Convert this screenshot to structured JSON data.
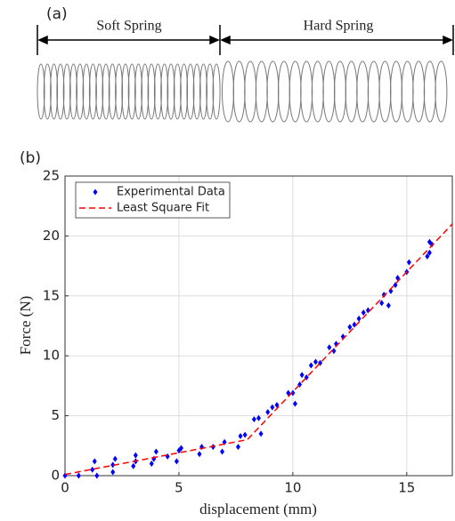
{
  "panel_a": {
    "label": "(a)",
    "soft": "Soft Spring",
    "hard": "Hard Spring"
  },
  "panel_b_label": "(b)",
  "chart_data": {
    "type": "scatter",
    "xlabel": "displacement (mm)",
    "ylabel": "Force (N)",
    "xlim": [
      0,
      17
    ],
    "ylim": [
      0,
      25
    ],
    "xticks": [
      0,
      5,
      10,
      15
    ],
    "yticks": [
      0,
      5,
      10,
      15,
      20,
      25
    ],
    "grid": true,
    "legend": "upper left",
    "series": [
      {
        "name": "Experimental Data",
        "type": "scatter",
        "color": "#0000ff",
        "x": [
          0.0,
          0.6,
          1.2,
          1.3,
          1.4,
          2.1,
          2.1,
          2.2,
          3.0,
          3.1,
          3.1,
          3.8,
          3.9,
          4.0,
          4.5,
          4.9,
          5.0,
          5.1,
          5.9,
          6.0,
          6.5,
          6.9,
          7.0,
          7.6,
          7.7,
          7.9,
          8.3,
          8.5,
          8.6,
          8.9,
          9.1,
          9.3,
          9.8,
          10.0,
          10.1,
          10.3,
          10.4,
          10.6,
          10.8,
          11.0,
          11.2,
          11.6,
          11.8,
          11.9,
          12.2,
          12.5,
          12.7,
          12.9,
          13.1,
          13.3,
          13.9,
          14.0,
          14.2,
          14.3,
          14.5,
          14.6,
          15.0,
          15.1,
          15.9,
          16.0,
          16.0,
          16.1
        ],
        "values": [
          0,
          0,
          0.5,
          1.2,
          0.0,
          0.3,
          0.9,
          1.4,
          0.8,
          1.2,
          1.7,
          1.0,
          1.4,
          2.0,
          1.6,
          1.2,
          2.1,
          2.3,
          1.8,
          2.4,
          2.4,
          2.0,
          2.8,
          2.4,
          3.3,
          3.4,
          4.7,
          4.8,
          3.5,
          5.3,
          5.7,
          5.9,
          6.9,
          6.9,
          6.0,
          7.6,
          8.4,
          8.2,
          9.2,
          9.5,
          9.4,
          10.7,
          10.4,
          11.0,
          11.6,
          12.4,
          12.6,
          13.1,
          13.6,
          13.8,
          14.4,
          15.1,
          14.2,
          15.4,
          15.9,
          16.5,
          17.0,
          17.8,
          18.3,
          18.6,
          19.5,
          19.3
        ]
      },
      {
        "name": "Least Square Fit",
        "type": "line",
        "color": "#ff0000",
        "x": [
          0,
          8,
          17
        ],
        "values": [
          0.1,
          3,
          21
        ]
      }
    ]
  }
}
